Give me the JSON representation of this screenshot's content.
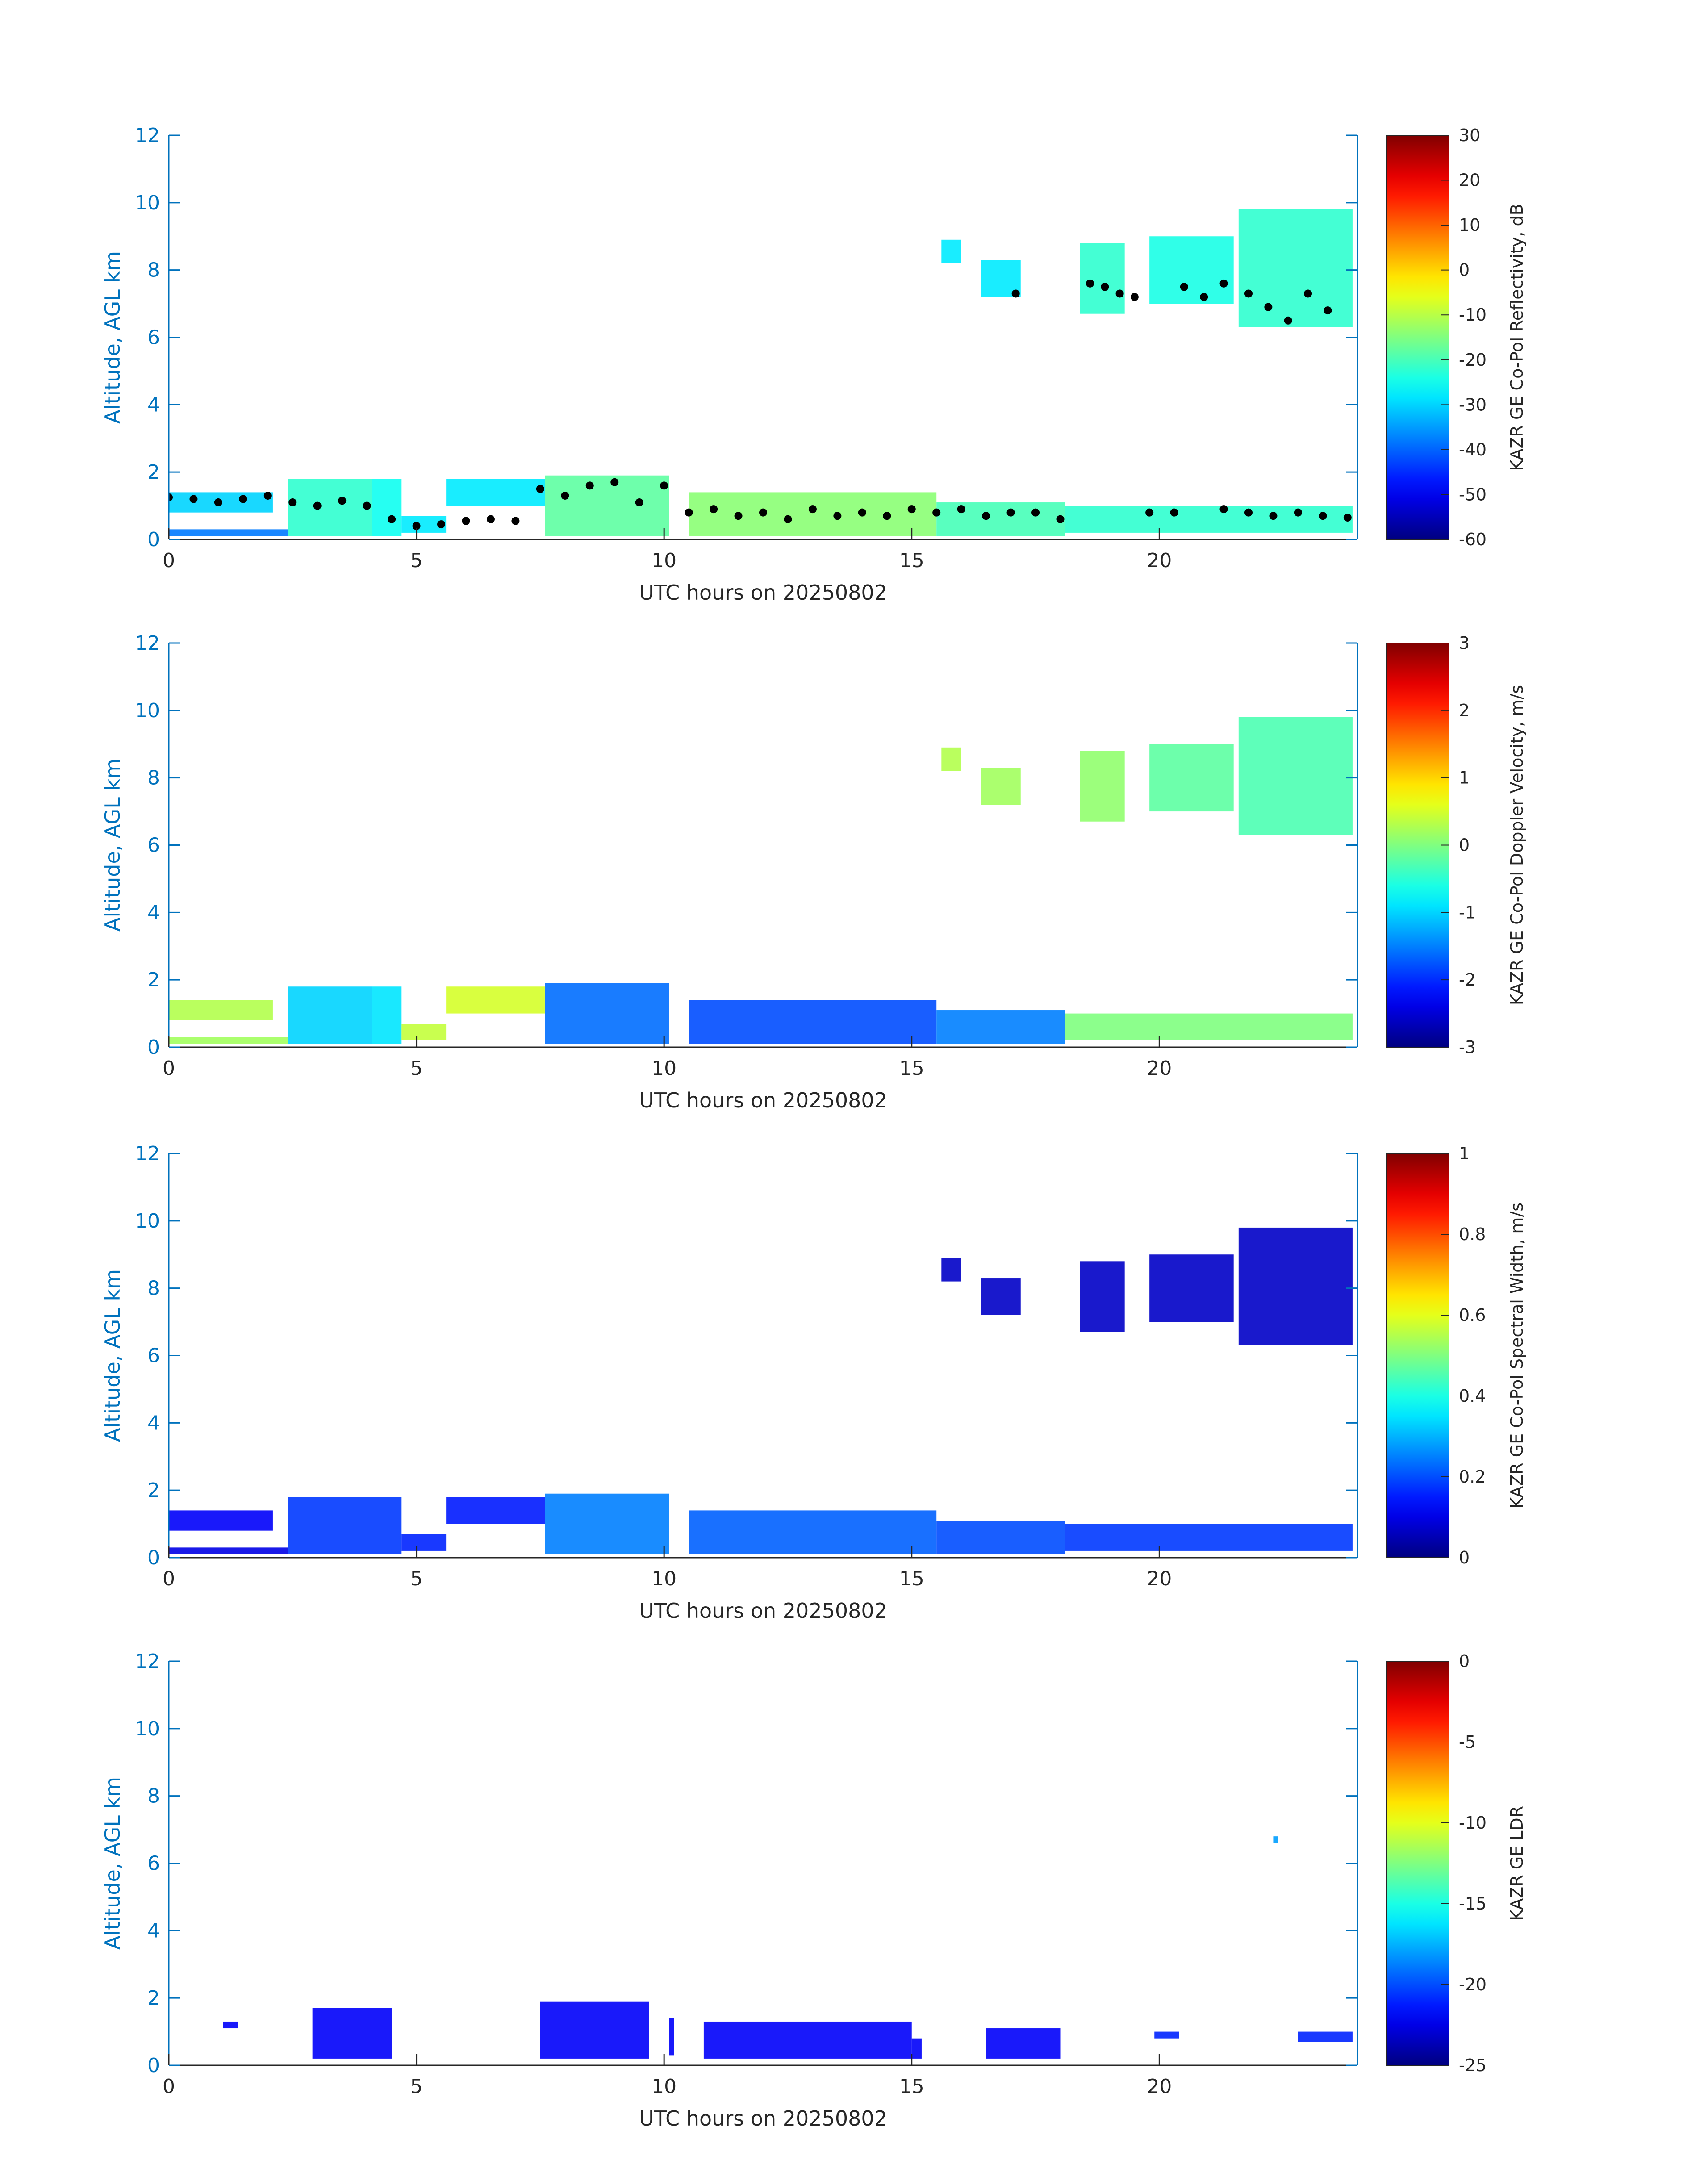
{
  "colors": {
    "axis_y": "#0072BD",
    "axis_x": "#262626",
    "background": "#ffffff",
    "colormap": "jet",
    "marker": "#000000"
  },
  "chart_data": [
    {
      "type": "heatmap",
      "id": "reflectivity",
      "xlabel": "UTC hours on 20250802",
      "ylabel": "Altitude, AGL km",
      "xlim": [
        0,
        24
      ],
      "ylim": [
        0,
        12
      ],
      "xticks": [
        "0",
        "5",
        "10",
        "15",
        "20"
      ],
      "yticks": [
        "0",
        "2",
        "4",
        "6",
        "8",
        "10",
        "12"
      ],
      "colorbar": {
        "label": "KAZR GE Co-Pol Reflectivity, dB",
        "min": -60,
        "max": 30,
        "ticks": [
          "-60",
          "-50",
          "-40",
          "-30",
          "-20",
          "-10",
          "0",
          "10",
          "20",
          "30"
        ]
      },
      "regions": [
        {
          "x": [
            0,
            2.1
          ],
          "y": [
            0.8,
            1.4
          ],
          "value": -30
        },
        {
          "x": [
            0,
            2.4
          ],
          "y": [
            0.1,
            0.3
          ],
          "value": -38
        },
        {
          "x": [
            2.4,
            4.1
          ],
          "y": [
            0.1,
            1.8
          ],
          "value": -22
        },
        {
          "x": [
            4.1,
            4.7
          ],
          "y": [
            0.1,
            1.8
          ],
          "value": -25
        },
        {
          "x": [
            4.7,
            5.6
          ],
          "y": [
            0.2,
            0.7
          ],
          "value": -28
        },
        {
          "x": [
            5.6,
            7.6
          ],
          "y": [
            1.0,
            1.8
          ],
          "value": -28
        },
        {
          "x": [
            7.6,
            10.1
          ],
          "y": [
            0.1,
            1.9
          ],
          "value": -18
        },
        {
          "x": [
            10.5,
            15.5
          ],
          "y": [
            0.1,
            1.4
          ],
          "value": -14
        },
        {
          "x": [
            15.5,
            18.1
          ],
          "y": [
            0.1,
            1.1
          ],
          "value": -20
        },
        {
          "x": [
            18.1,
            23.9
          ],
          "y": [
            0.2,
            1.0
          ],
          "value": -22
        },
        {
          "x": [
            15.6,
            16.0
          ],
          "y": [
            8.2,
            8.9
          ],
          "value": -28
        },
        {
          "x": [
            16.4,
            17.2
          ],
          "y": [
            7.2,
            8.3
          ],
          "value": -28
        },
        {
          "x": [
            18.4,
            19.3
          ],
          "y": [
            6.7,
            8.8
          ],
          "value": -22
        },
        {
          "x": [
            19.8,
            21.5
          ],
          "y": [
            7.0,
            9.0
          ],
          "value": -24
        },
        {
          "x": [
            21.6,
            23.9
          ],
          "y": [
            6.3,
            9.8
          ],
          "value": -22
        }
      ],
      "marker_series": [
        {
          "x": [
            0,
            0.5,
            1.0,
            1.5,
            2.0,
            2.5,
            3.0,
            3.5,
            4.0,
            4.5,
            5.0,
            5.5,
            6.0,
            6.5,
            7.0,
            7.5,
            8.0,
            8.5,
            9.0,
            9.5,
            10.0,
            10.5,
            11.0,
            11.5,
            12.0,
            12.5,
            13.0,
            13.5,
            14.0,
            14.5,
            15.0,
            15.5,
            16.0,
            16.5,
            17.0,
            17.5,
            18.0,
            19.8,
            20.3,
            21.3,
            21.8,
            22.3,
            22.8,
            23.3,
            23.8
          ],
          "y": [
            1.25,
            1.2,
            1.1,
            1.2,
            1.3,
            1.1,
            1.0,
            1.15,
            1.0,
            0.6,
            0.4,
            0.45,
            0.55,
            0.6,
            0.55,
            1.5,
            1.3,
            1.6,
            1.7,
            1.1,
            1.6,
            0.8,
            0.9,
            0.7,
            0.8,
            0.6,
            0.9,
            0.7,
            0.8,
            0.7,
            0.9,
            0.8,
            0.9,
            0.7,
            0.8,
            0.8,
            0.6,
            0.8,
            0.8,
            0.9,
            0.8,
            0.7,
            0.8,
            0.7,
            0.65
          ]
        },
        {
          "x": [
            17.1,
            18.6,
            18.9,
            19.2,
            19.5,
            20.5,
            20.9,
            21.3,
            21.8,
            22.2,
            22.6,
            23.0,
            23.4
          ],
          "y": [
            7.3,
            7.6,
            7.5,
            7.3,
            7.2,
            7.5,
            7.2,
            7.6,
            7.3,
            6.9,
            6.5,
            7.3,
            6.8
          ]
        }
      ]
    },
    {
      "type": "heatmap",
      "id": "doppler-velocity",
      "xlabel": "UTC hours on 20250802",
      "ylabel": "Altitude, AGL km",
      "xlim": [
        0,
        24
      ],
      "ylim": [
        0,
        12
      ],
      "xticks": [
        "0",
        "5",
        "10",
        "15",
        "20"
      ],
      "yticks": [
        "0",
        "2",
        "4",
        "6",
        "8",
        "10",
        "12"
      ],
      "colorbar": {
        "label": "KAZR GE Co-Pol Doppler Velocity, m/s",
        "min": -3,
        "max": 3,
        "ticks": [
          "-3",
          "-2",
          "-1",
          "0",
          "1",
          "2",
          "3"
        ]
      },
      "regions": [
        {
          "x": [
            0,
            2.1
          ],
          "y": [
            0.8,
            1.4
          ],
          "value": 0.3
        },
        {
          "x": [
            0,
            2.4
          ],
          "y": [
            0.1,
            0.3
          ],
          "value": 0.2
        },
        {
          "x": [
            2.4,
            4.1
          ],
          "y": [
            0.1,
            1.8
          ],
          "value": -1.0
        },
        {
          "x": [
            4.1,
            4.7
          ],
          "y": [
            0.1,
            1.8
          ],
          "value": -0.9
        },
        {
          "x": [
            4.7,
            5.6
          ],
          "y": [
            0.2,
            0.7
          ],
          "value": 0.4
        },
        {
          "x": [
            5.6,
            7.6
          ],
          "y": [
            1.0,
            1.8
          ],
          "value": 0.5
        },
        {
          "x": [
            7.6,
            10.1
          ],
          "y": [
            0.1,
            1.9
          ],
          "value": -1.6
        },
        {
          "x": [
            10.5,
            15.5
          ],
          "y": [
            0.1,
            1.4
          ],
          "value": -1.8
        },
        {
          "x": [
            15.5,
            18.1
          ],
          "y": [
            0.1,
            1.1
          ],
          "value": -1.5
        },
        {
          "x": [
            18.1,
            23.9
          ],
          "y": [
            0.2,
            1.0
          ],
          "value": 0.0
        },
        {
          "x": [
            15.6,
            16.0
          ],
          "y": [
            8.2,
            8.9
          ],
          "value": 0.3
        },
        {
          "x": [
            16.4,
            17.2
          ],
          "y": [
            7.2,
            8.3
          ],
          "value": 0.2
        },
        {
          "x": [
            18.4,
            19.3
          ],
          "y": [
            6.7,
            8.8
          ],
          "value": 0.1
        },
        {
          "x": [
            19.8,
            21.5
          ],
          "y": [
            7.0,
            9.0
          ],
          "value": -0.2
        },
        {
          "x": [
            21.6,
            23.9
          ],
          "y": [
            6.3,
            9.8
          ],
          "value": -0.3
        }
      ]
    },
    {
      "type": "heatmap",
      "id": "spectral-width",
      "xlabel": "UTC hours on 20250802",
      "ylabel": "Altitude, AGL km",
      "xlim": [
        0,
        24
      ],
      "ylim": [
        0,
        12
      ],
      "xticks": [
        "0",
        "5",
        "10",
        "15",
        "20"
      ],
      "yticks": [
        "0",
        "2",
        "4",
        "6",
        "8",
        "10",
        "12"
      ],
      "colorbar": {
        "label": "KAZR GE Co-Pol Spectral Width, m/s",
        "min": 0,
        "max": 1,
        "ticks": [
          "0",
          "0.2",
          "0.4",
          "0.6",
          "0.8",
          "1"
        ]
      },
      "regions": [
        {
          "x": [
            0,
            2.1
          ],
          "y": [
            0.8,
            1.4
          ],
          "value": 0.12
        },
        {
          "x": [
            0,
            2.4
          ],
          "y": [
            0.1,
            0.3
          ],
          "value": 0.1
        },
        {
          "x": [
            2.4,
            4.1
          ],
          "y": [
            0.1,
            1.8
          ],
          "value": 0.18
        },
        {
          "x": [
            4.1,
            4.7
          ],
          "y": [
            0.1,
            1.8
          ],
          "value": 0.18
        },
        {
          "x": [
            4.7,
            5.6
          ],
          "y": [
            0.2,
            0.7
          ],
          "value": 0.16
        },
        {
          "x": [
            5.6,
            7.6
          ],
          "y": [
            1.0,
            1.8
          ],
          "value": 0.15
        },
        {
          "x": [
            7.6,
            10.1
          ],
          "y": [
            0.1,
            1.9
          ],
          "value": 0.25
        },
        {
          "x": [
            10.5,
            15.5
          ],
          "y": [
            0.1,
            1.4
          ],
          "value": 0.22
        },
        {
          "x": [
            15.5,
            18.1
          ],
          "y": [
            0.1,
            1.1
          ],
          "value": 0.2
        },
        {
          "x": [
            18.1,
            23.9
          ],
          "y": [
            0.2,
            1.0
          ],
          "value": 0.18
        },
        {
          "x": [
            15.6,
            16.0
          ],
          "y": [
            8.2,
            8.9
          ],
          "value": 0.07
        },
        {
          "x": [
            16.4,
            17.2
          ],
          "y": [
            7.2,
            8.3
          ],
          "value": 0.07
        },
        {
          "x": [
            18.4,
            19.3
          ],
          "y": [
            6.7,
            8.8
          ],
          "value": 0.07
        },
        {
          "x": [
            19.8,
            21.5
          ],
          "y": [
            7.0,
            9.0
          ],
          "value": 0.07
        },
        {
          "x": [
            21.6,
            23.9
          ],
          "y": [
            6.3,
            9.8
          ],
          "value": 0.07
        }
      ]
    },
    {
      "type": "heatmap",
      "id": "ldr",
      "xlabel": "UTC hours on 20250802",
      "ylabel": "Altitude, AGL km",
      "xlim": [
        0,
        24
      ],
      "ylim": [
        0,
        12
      ],
      "xticks": [
        "0",
        "5",
        "10",
        "15",
        "20"
      ],
      "yticks": [
        "0",
        "2",
        "4",
        "6",
        "8",
        "10",
        "12"
      ],
      "colorbar": {
        "label": "KAZR GE LDR",
        "min": -25,
        "max": 0,
        "ticks": [
          "-25",
          "-20",
          "-15",
          "-10",
          "-5",
          "0"
        ]
      },
      "regions": [
        {
          "x": [
            1.1,
            1.4
          ],
          "y": [
            1.1,
            1.3
          ],
          "value": -22
        },
        {
          "x": [
            2.9,
            4.1
          ],
          "y": [
            0.2,
            1.7
          ],
          "value": -22
        },
        {
          "x": [
            4.1,
            4.5
          ],
          "y": [
            0.2,
            1.7
          ],
          "value": -22
        },
        {
          "x": [
            7.5,
            9.7
          ],
          "y": [
            0.2,
            1.9
          ],
          "value": -22
        },
        {
          "x": [
            10.1,
            10.2
          ],
          "y": [
            0.3,
            1.4
          ],
          "value": -22
        },
        {
          "x": [
            10.8,
            15.0
          ],
          "y": [
            0.2,
            1.3
          ],
          "value": -22
        },
        {
          "x": [
            15.0,
            15.2
          ],
          "y": [
            0.2,
            0.8
          ],
          "value": -22
        },
        {
          "x": [
            16.5,
            18.0
          ],
          "y": [
            0.2,
            1.1
          ],
          "value": -22
        },
        {
          "x": [
            19.9,
            20.4
          ],
          "y": [
            0.8,
            1.0
          ],
          "value": -21
        },
        {
          "x": [
            22.8,
            23.9
          ],
          "y": [
            0.7,
            1.0
          ],
          "value": -21
        },
        {
          "x": [
            22.3,
            22.4
          ],
          "y": [
            6.6,
            6.8
          ],
          "value": -18
        }
      ]
    }
  ]
}
